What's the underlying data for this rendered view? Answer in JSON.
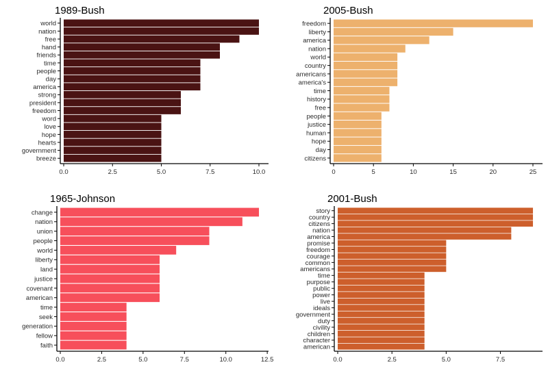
{
  "chart_data": [
    {
      "type": "bar",
      "orientation": "horizontal",
      "title": "1989-Bush",
      "color": "#4a1313",
      "categories": [
        "world",
        "nation",
        "free",
        "hand",
        "friends",
        "time",
        "people",
        "day",
        "america",
        "strong",
        "president",
        "freedom",
        "word",
        "love",
        "hope",
        "hearts",
        "government",
        "breeze"
      ],
      "values": [
        10,
        10,
        9,
        8,
        8,
        7,
        7,
        7,
        7,
        6,
        6,
        6,
        5,
        5,
        5,
        5,
        5,
        5
      ],
      "xlim": [
        0,
        10
      ],
      "ticks": [
        0,
        2.5,
        5,
        7.5,
        10
      ],
      "tick_labels": [
        "0.0",
        "2.5",
        "5.0",
        "7.5",
        "10.0"
      ]
    },
    {
      "type": "bar",
      "orientation": "horizontal",
      "title": "2005-Bush",
      "color": "#edb16d",
      "categories": [
        "freedom",
        "liberty",
        "america",
        "nation",
        "world",
        "country",
        "americans",
        "america's",
        "time",
        "history",
        "free",
        "people",
        "justice",
        "human",
        "hope",
        "day",
        "citizens"
      ],
      "values": [
        25,
        15,
        12,
        9,
        8,
        8,
        8,
        8,
        7,
        7,
        7,
        6,
        6,
        6,
        6,
        6,
        6
      ],
      "xlim": [
        0,
        25
      ],
      "ticks": [
        0,
        5,
        10,
        15,
        20,
        25
      ],
      "tick_labels": [
        "0",
        "5",
        "10",
        "15",
        "20",
        "25"
      ]
    },
    {
      "type": "bar",
      "orientation": "horizontal",
      "title": "1965-Johnson",
      "color": "#f74f5b",
      "categories": [
        "change",
        "nation",
        "union",
        "people",
        "world",
        "liberty",
        "land",
        "justice",
        "covenant",
        "american",
        "time",
        "seek",
        "generation",
        "fellow",
        "faith"
      ],
      "values": [
        12,
        11,
        9,
        9,
        7,
        6,
        6,
        6,
        6,
        6,
        4,
        4,
        4,
        4,
        4
      ],
      "xlim": [
        0,
        12
      ],
      "ticks": [
        0,
        2.5,
        5,
        7.5,
        10,
        12.5
      ],
      "tick_labels": [
        "0.0",
        "2.5",
        "5.0",
        "7.5",
        "10.0",
        "12.5"
      ]
    },
    {
      "type": "bar",
      "orientation": "horizontal",
      "title": "2001-Bush",
      "color": "#cd5f2c",
      "categories": [
        "story",
        "country",
        "citizens",
        "nation",
        "america",
        "promise",
        "freedom",
        "courage",
        "common",
        "americans",
        "time",
        "purpose",
        "public",
        "power",
        "live",
        "ideals",
        "government",
        "duty",
        "civility",
        "children",
        "character",
        "american"
      ],
      "values": [
        9,
        9,
        9,
        8,
        8,
        5,
        5,
        5,
        5,
        5,
        4,
        4,
        4,
        4,
        4,
        4,
        4,
        4,
        4,
        4,
        4,
        4
      ],
      "xlim": [
        0,
        9
      ],
      "ticks": [
        0,
        2.5,
        5,
        7.5
      ],
      "tick_labels": [
        "0.0",
        "2.5",
        "5.0",
        "7.5"
      ]
    }
  ]
}
